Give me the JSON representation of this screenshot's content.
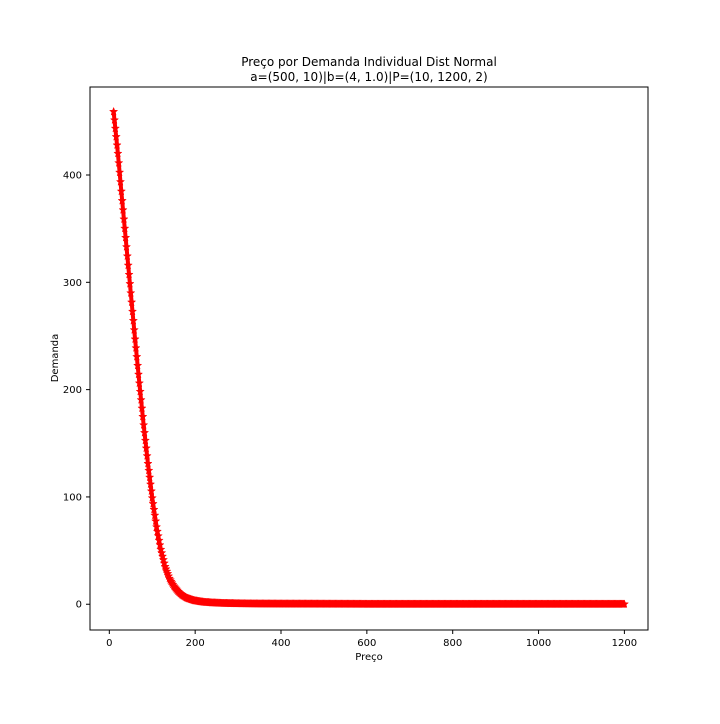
{
  "chart_data": {
    "type": "line",
    "title": "Preço por Demanda Individual Dist Normal",
    "subtitle": "a=(500, 10)|b=(4, 1.0)|P=(10, 1200, 2)",
    "xlabel": "Preço",
    "ylabel": "Demanda",
    "xlim": [
      -45,
      1255
    ],
    "ylim": [
      -24,
      482
    ],
    "x_ticks": [
      0,
      200,
      400,
      600,
      800,
      1000,
      1200
    ],
    "y_ticks": [
      0,
      100,
      200,
      300,
      400
    ],
    "grid": false,
    "marker": "star",
    "series_color": "#ff0000",
    "series": [
      {
        "x": [
          10,
          20,
          30,
          40,
          50,
          60,
          70,
          80,
          90,
          100,
          110,
          120,
          130,
          140,
          150,
          160,
          170,
          180,
          190,
          200,
          220,
          240,
          260,
          280,
          300,
          350,
          400,
          500,
          600,
          700,
          800,
          900,
          1000,
          1100,
          1200
        ],
        "values": [
          459,
          420,
          376,
          333,
          290,
          247,
          206,
          167,
          131,
          99,
          72,
          51,
          35,
          24,
          17,
          12,
          8.5,
          6,
          4.5,
          3.3,
          2,
          1.4,
          1,
          0.8,
          0.6,
          0.4,
          0.3,
          0.2,
          0.1,
          0.1,
          0.1,
          0.1,
          0.1,
          0.1,
          0.1
        ]
      }
    ]
  }
}
